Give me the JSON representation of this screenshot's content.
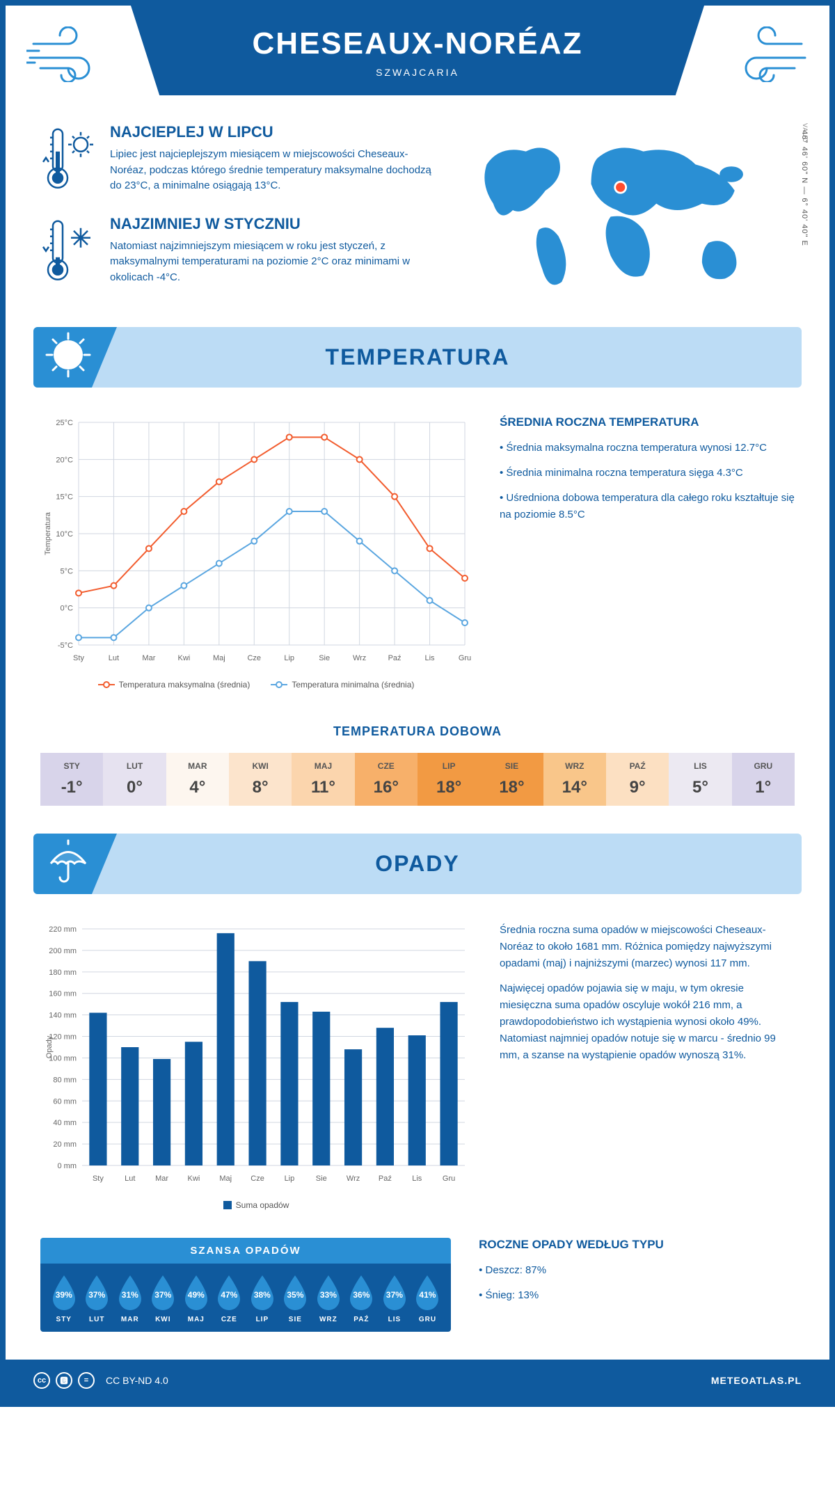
{
  "header": {
    "title": "CHESEAUX-NORÉAZ",
    "subtitle": "SZWAJCARIA"
  },
  "map": {
    "region": "VAUD",
    "coords": "46° 46' 60\" N — 6° 40' 40\" E",
    "marker_color": "#ff4d2e",
    "land_color": "#2a8fd4"
  },
  "facts": {
    "warm": {
      "title": "NAJCIEPLEJ W LIPCU",
      "text": "Lipiec jest najcieplejszym miesiącem w miejscowości Cheseaux-Noréaz, podczas którego średnie temperatury maksymalne dochodzą do 23°C, a minimalne osiągają 13°C."
    },
    "cold": {
      "title": "NAJZIMNIEJ W STYCZNIU",
      "text": "Natomiast najzimniejszym miesiącem w roku jest styczeń, z maksymalnymi temperaturami na poziomie 2°C oraz minimami w okolicach -4°C."
    }
  },
  "months_short": [
    "Sty",
    "Lut",
    "Mar",
    "Kwi",
    "Maj",
    "Cze",
    "Lip",
    "Sie",
    "Wrz",
    "Paź",
    "Lis",
    "Gru"
  ],
  "months_upper": [
    "STY",
    "LUT",
    "MAR",
    "KWI",
    "MAJ",
    "CZE",
    "LIP",
    "SIE",
    "WRZ",
    "PAŹ",
    "LIS",
    "GRU"
  ],
  "temperature": {
    "section_title": "TEMPERATURA",
    "chart": {
      "type": "line",
      "y_label": "Temperatura",
      "y_min": -5,
      "y_max": 25,
      "y_step": 5,
      "y_suffix": "°C",
      "series": [
        {
          "name": "Temperatura maksymalna (średnia)",
          "color": "#f25c2e",
          "values": [
            2,
            3,
            8,
            13,
            17,
            20,
            23,
            23,
            20,
            15,
            8,
            4
          ]
        },
        {
          "name": "Temperatura minimalna (średnia)",
          "color": "#5aa6e0",
          "values": [
            -4,
            -4,
            0,
            3,
            6,
            9,
            13,
            13,
            9,
            5,
            1,
            -2
          ]
        }
      ],
      "grid_color": "#d0d6e0",
      "bg": "#ffffff",
      "marker": "circle",
      "marker_size": 4,
      "line_width": 2
    },
    "summary_title": "ŚREDNIA ROCZNA TEMPERATURA",
    "summary": [
      "• Średnia maksymalna roczna temperatura wynosi 12.7°C",
      "• Średnia minimalna roczna temperatura sięga 4.3°C",
      "• Uśredniona dobowa temperatura dla całego roku kształtuje się na poziomie 8.5°C"
    ],
    "daily_title": "TEMPERATURA DOBOWA",
    "daily_values": [
      "-1°",
      "0°",
      "4°",
      "8°",
      "11°",
      "16°",
      "18°",
      "18°",
      "14°",
      "9°",
      "5°",
      "1°"
    ],
    "daily_colors": [
      "#d8d4ea",
      "#e6e2f0",
      "#fdf6ef",
      "#fce4cc",
      "#fbd5ad",
      "#f7b06a",
      "#f29a43",
      "#f29a43",
      "#f9c68a",
      "#fce0c2",
      "#ece9f2",
      "#d8d4ea"
    ]
  },
  "precip": {
    "section_title": "OPADY",
    "chart": {
      "type": "bar",
      "y_label": "Opady",
      "y_min": 0,
      "y_max": 220,
      "y_step": 20,
      "y_suffix": " mm",
      "values": [
        142,
        110,
        99,
        115,
        216,
        190,
        152,
        143,
        108,
        128,
        121,
        152
      ],
      "bar_color": "#0f5a9e",
      "grid_color": "#d0d6e0",
      "legend": "Suma opadów"
    },
    "summary": [
      "Średnia roczna suma opadów w miejscowości Cheseaux-Noréaz to około 1681 mm. Różnica pomiędzy najwyższymi opadami (maj) i najniższymi (marzec) wynosi 117 mm.",
      "Najwięcej opadów pojawia się w maju, w tym okresie miesięczna suma opadów oscyluje wokół 216 mm, a prawdopodobieństwo ich wystąpienia wynosi około 49%. Natomiast najmniej opadów notuje się w marcu - średnio 99 mm, a szanse na wystąpienie opadów wynoszą 31%."
    ],
    "chance_title": "SZANSA OPADÓW",
    "chance_values": [
      "39%",
      "37%",
      "31%",
      "37%",
      "49%",
      "47%",
      "38%",
      "35%",
      "33%",
      "36%",
      "37%",
      "41%"
    ],
    "type_title": "ROCZNE OPADY WEDŁUG TYPU",
    "type_lines": [
      "• Deszcz: 87%",
      "• Śnieg: 13%"
    ]
  },
  "footer": {
    "license": "CC BY-ND 4.0",
    "site": "METEOATLAS.PL"
  },
  "colors": {
    "primary": "#0f5a9e",
    "accent": "#2a8fd4",
    "light": "#bcdcf5"
  }
}
